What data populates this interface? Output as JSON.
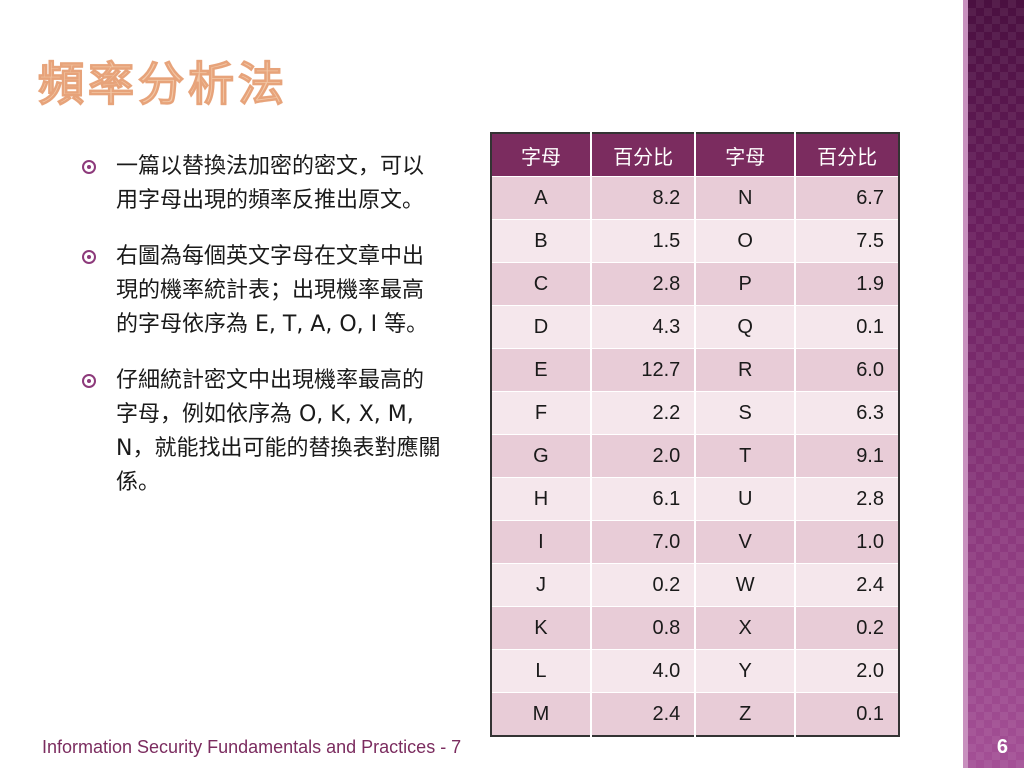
{
  "title": "頻率分析法",
  "bullets": [
    "一篇以替換法加密的密文，可以用字母出現的頻率反推出原文。",
    "右圖為每個英文字母在文章中出現的機率統計表；出現機率最高的字母依序為 E, T, A, O, I 等。",
    "仔細統計密文中出現機率最高的字母，例如依序為 O, K, X, M, N，就能找出可能的替換表對應關係。"
  ],
  "table": {
    "headers": [
      "字母",
      "百分比",
      "字母",
      "百分比"
    ],
    "rows": [
      [
        "A",
        "8.2",
        "N",
        "6.7"
      ],
      [
        "B",
        "1.5",
        "O",
        "7.5"
      ],
      [
        "C",
        "2.8",
        "P",
        "1.9"
      ],
      [
        "D",
        "4.3",
        "Q",
        "0.1"
      ],
      [
        "E",
        "12.7",
        "R",
        "6.0"
      ],
      [
        "F",
        "2.2",
        "S",
        "6.3"
      ],
      [
        "G",
        "2.0",
        "T",
        "9.1"
      ],
      [
        "H",
        "6.1",
        "U",
        "2.8"
      ],
      [
        "I",
        "7.0",
        "V",
        "1.0"
      ],
      [
        "J",
        "0.2",
        "W",
        "2.4"
      ],
      [
        "K",
        "0.8",
        "X",
        "0.2"
      ],
      [
        "L",
        "4.0",
        "Y",
        "2.0"
      ],
      [
        "M",
        "2.4",
        "Z",
        "0.1"
      ]
    ]
  },
  "footer": "Information Security Fundamentals and Practices - 7",
  "page_number": "6",
  "colors": {
    "title": "#f2c7a6",
    "accent": "#7b2c5f",
    "row_dark": "#e8ccd7",
    "row_light": "#f5e7ec"
  }
}
